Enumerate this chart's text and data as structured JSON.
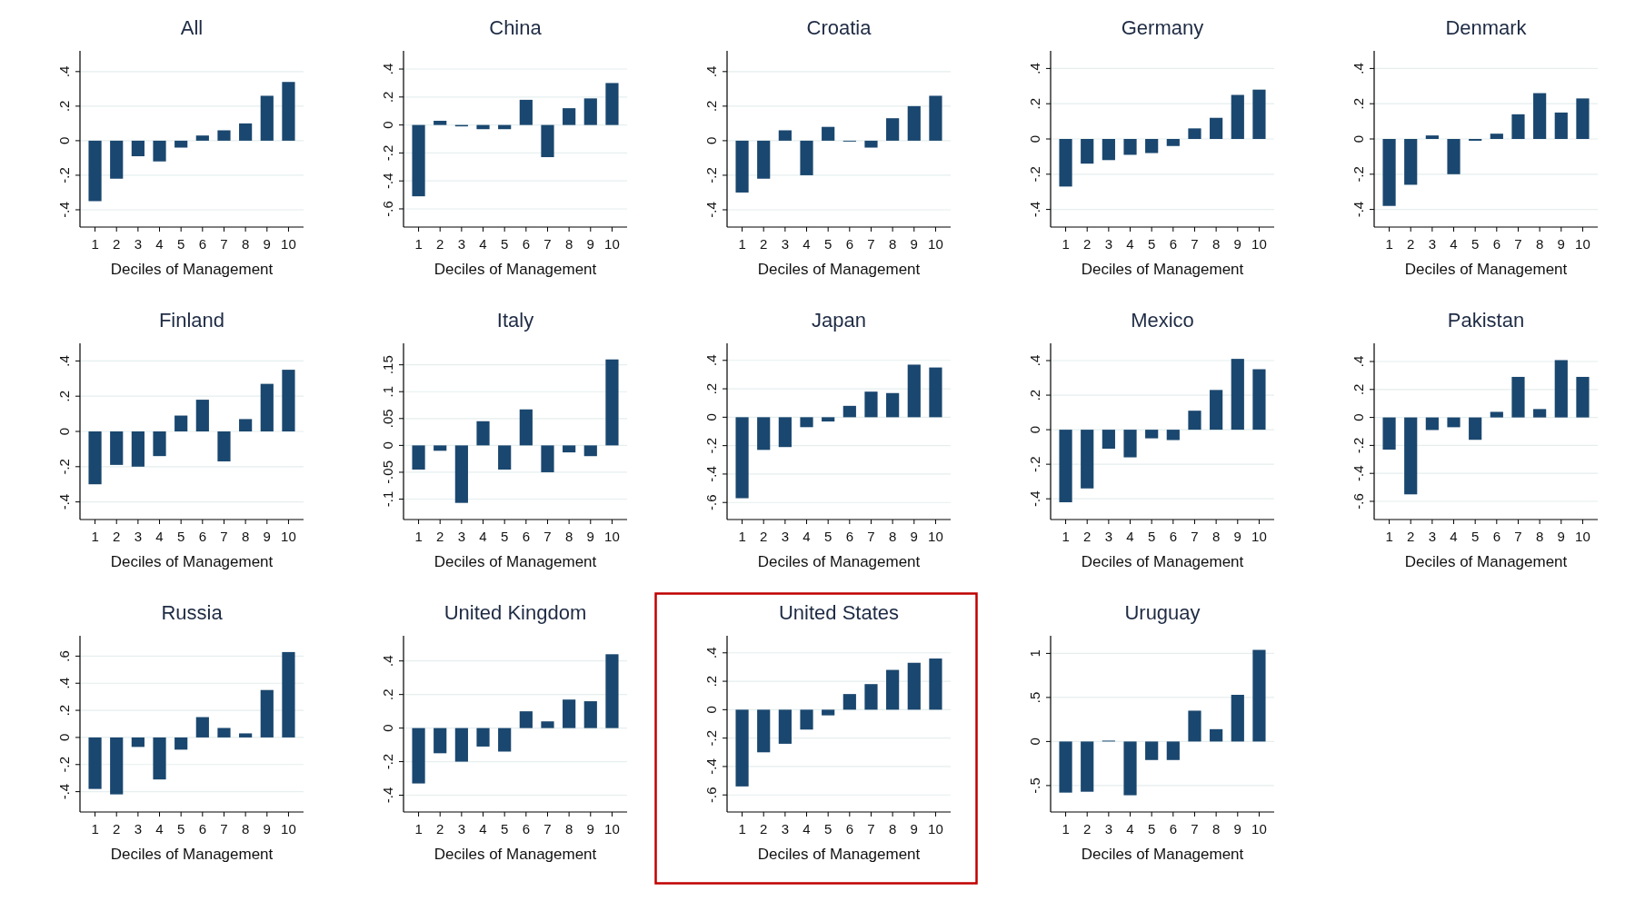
{
  "chart_data": [
    {
      "type": "bar",
      "title": "All",
      "xlabel": "Deciles of Management",
      "categories": [
        "1",
        "2",
        "3",
        "4",
        "5",
        "6",
        "7",
        "8",
        "9",
        "10"
      ],
      "values": [
        -0.35,
        -0.22,
        -0.09,
        -0.12,
        -0.04,
        0.03,
        0.06,
        0.1,
        0.26,
        0.34
      ],
      "color": "#1a476f",
      "ylim": [
        -0.5,
        0.52
      ],
      "yticks": [
        {
          "value": -0.4,
          "label": "-.4"
        },
        {
          "value": -0.2,
          "label": "-.2"
        },
        {
          "value": 0,
          "label": "0"
        },
        {
          "value": 0.2,
          "label": ".2"
        },
        {
          "value": 0.4,
          "label": ".4"
        }
      ],
      "grid": "y"
    },
    {
      "type": "bar",
      "title": "China",
      "xlabel": "Deciles of Management",
      "categories": [
        "1",
        "2",
        "3",
        "4",
        "5",
        "6",
        "7",
        "8",
        "9",
        "10"
      ],
      "values": [
        -0.51,
        0.03,
        -0.01,
        -0.03,
        -0.03,
        0.18,
        -0.23,
        0.12,
        0.19,
        0.3
      ],
      "color": "#1a476f",
      "ylim": [
        -0.73,
        0.53
      ],
      "yticks": [
        {
          "value": -0.6,
          "label": "-.6"
        },
        {
          "value": -0.4,
          "label": "-.4"
        },
        {
          "value": -0.2,
          "label": "-.2"
        },
        {
          "value": 0,
          "label": "0"
        },
        {
          "value": 0.2,
          "label": ".2"
        },
        {
          "value": 0.4,
          "label": ".4"
        }
      ],
      "grid": "y"
    },
    {
      "type": "bar",
      "title": "Croatia",
      "xlabel": "Deciles of Management",
      "categories": [
        "1",
        "2",
        "3",
        "4",
        "5",
        "6",
        "7",
        "8",
        "9",
        "10"
      ],
      "values": [
        -0.3,
        -0.22,
        0.06,
        -0.2,
        0.08,
        -0.005,
        -0.04,
        0.13,
        0.2,
        0.26
      ],
      "color": "#1a476f",
      "ylim": [
        -0.5,
        0.52
      ],
      "yticks": [
        {
          "value": -0.4,
          "label": "-.4"
        },
        {
          "value": -0.2,
          "label": "-.2"
        },
        {
          "value": 0,
          "label": "0"
        },
        {
          "value": 0.2,
          "label": ".2"
        },
        {
          "value": 0.4,
          "label": ".4"
        }
      ],
      "grid": "y"
    },
    {
      "type": "bar",
      "title": "Germany",
      "xlabel": "Deciles of Management",
      "categories": [
        "1",
        "2",
        "3",
        "4",
        "5",
        "6",
        "7",
        "8",
        "9",
        "10"
      ],
      "values": [
        -0.27,
        -0.14,
        -0.12,
        -0.09,
        -0.08,
        -0.04,
        0.06,
        0.12,
        0.25,
        0.28
      ],
      "color": "#1a476f",
      "ylim": [
        -0.5,
        0.5
      ],
      "yticks": [
        {
          "value": -0.4,
          "label": "-.4"
        },
        {
          "value": -0.2,
          "label": "-.2"
        },
        {
          "value": 0,
          "label": "0"
        },
        {
          "value": 0.2,
          "label": ".2"
        },
        {
          "value": 0.4,
          "label": ".4"
        }
      ],
      "grid": "y"
    },
    {
      "type": "bar",
      "title": "Denmark",
      "xlabel": "Deciles of Management",
      "categories": [
        "1",
        "2",
        "3",
        "4",
        "5",
        "6",
        "7",
        "8",
        "9",
        "10"
      ],
      "values": [
        -0.38,
        -0.26,
        0.02,
        -0.2,
        -0.01,
        0.03,
        0.14,
        0.26,
        0.15,
        0.23
      ],
      "color": "#1a476f",
      "ylim": [
        -0.5,
        0.5
      ],
      "yticks": [
        {
          "value": -0.4,
          "label": "-.4"
        },
        {
          "value": -0.2,
          "label": "-.2"
        },
        {
          "value": 0,
          "label": "0"
        },
        {
          "value": 0.2,
          "label": ".2"
        },
        {
          "value": 0.4,
          "label": ".4"
        }
      ],
      "grid": "y"
    },
    {
      "type": "bar",
      "title": "Finland",
      "xlabel": "Deciles of Management",
      "categories": [
        "1",
        "2",
        "3",
        "4",
        "5",
        "6",
        "7",
        "8",
        "9",
        "10"
      ],
      "values": [
        -0.3,
        -0.19,
        -0.2,
        -0.14,
        0.09,
        0.18,
        -0.17,
        0.07,
        0.27,
        0.35
      ],
      "color": "#1a476f",
      "ylim": [
        -0.5,
        0.5
      ],
      "yticks": [
        {
          "value": -0.4,
          "label": "-.4"
        },
        {
          "value": -0.2,
          "label": "-.2"
        },
        {
          "value": 0,
          "label": "0"
        },
        {
          "value": 0.2,
          "label": ".2"
        },
        {
          "value": 0.4,
          "label": ".4"
        }
      ],
      "grid": "y"
    },
    {
      "type": "bar",
      "title": "Italy",
      "xlabel": "Deciles of Management",
      "categories": [
        "1",
        "2",
        "3",
        "4",
        "5",
        "6",
        "7",
        "8",
        "9",
        "10"
      ],
      "values": [
        -0.045,
        -0.01,
        -0.107,
        0.045,
        -0.045,
        0.067,
        -0.05,
        -0.013,
        -0.02,
        0.16
      ],
      "color": "#1a476f",
      "ylim": [
        -0.138,
        0.19
      ],
      "yticks": [
        {
          "value": -0.1,
          "label": "-.1"
        },
        {
          "value": -0.05,
          "label": "-.05"
        },
        {
          "value": 0,
          "label": "0"
        },
        {
          "value": 0.05,
          "label": ".05"
        },
        {
          "value": 0.1,
          "label": ".1"
        },
        {
          "value": 0.15,
          "label": ".15"
        }
      ],
      "grid": "y"
    },
    {
      "type": "bar",
      "title": "Japan",
      "xlabel": "Deciles of Management",
      "categories": [
        "1",
        "2",
        "3",
        "4",
        "5",
        "6",
        "7",
        "8",
        "9",
        "10"
      ],
      "values": [
        -0.57,
        -0.23,
        -0.21,
        -0.07,
        -0.03,
        0.08,
        0.18,
        0.17,
        0.37,
        0.35
      ],
      "color": "#1a476f",
      "ylim": [
        -0.72,
        0.52
      ],
      "yticks": [
        {
          "value": -0.6,
          "label": "-.6"
        },
        {
          "value": -0.4,
          "label": "-.4"
        },
        {
          "value": -0.2,
          "label": "-.2"
        },
        {
          "value": 0,
          "label": "0"
        },
        {
          "value": 0.2,
          "label": ".2"
        },
        {
          "value": 0.4,
          "label": ".4"
        }
      ],
      "grid": "y"
    },
    {
      "type": "bar",
      "title": "Mexico",
      "xlabel": "Deciles of Management",
      "categories": [
        "1",
        "2",
        "3",
        "4",
        "5",
        "6",
        "7",
        "8",
        "9",
        "10"
      ],
      "values": [
        -0.42,
        -0.34,
        -0.11,
        -0.16,
        -0.05,
        -0.06,
        0.11,
        0.23,
        0.41,
        0.35
      ],
      "color": "#1a476f",
      "ylim": [
        -0.52,
        0.5
      ],
      "yticks": [
        {
          "value": -0.4,
          "label": "-.4"
        },
        {
          "value": -0.2,
          "label": "-.2"
        },
        {
          "value": 0,
          "label": "0"
        },
        {
          "value": 0.2,
          "label": ".2"
        },
        {
          "value": 0.4,
          "label": ".4"
        }
      ],
      "grid": "y"
    },
    {
      "type": "bar",
      "title": "Pakistan",
      "xlabel": "Deciles of Management",
      "categories": [
        "1",
        "2",
        "3",
        "4",
        "5",
        "6",
        "7",
        "8",
        "9",
        "10"
      ],
      "values": [
        -0.23,
        -0.55,
        -0.09,
        -0.07,
        -0.16,
        0.04,
        0.29,
        0.06,
        0.41,
        0.29
      ],
      "color": "#1a476f",
      "ylim": [
        -0.73,
        0.53
      ],
      "yticks": [
        {
          "value": -0.6,
          "label": "-.6"
        },
        {
          "value": -0.4,
          "label": "-.4"
        },
        {
          "value": -0.2,
          "label": "-.2"
        },
        {
          "value": 0,
          "label": "0"
        },
        {
          "value": 0.2,
          "label": ".2"
        },
        {
          "value": 0.4,
          "label": ".4"
        }
      ],
      "grid": "y"
    },
    {
      "type": "bar",
      "title": "Russia",
      "xlabel": "Deciles of Management",
      "categories": [
        "1",
        "2",
        "3",
        "4",
        "5",
        "6",
        "7",
        "8",
        "9",
        "10"
      ],
      "values": [
        -0.38,
        -0.42,
        -0.07,
        -0.31,
        -0.09,
        0.15,
        0.07,
        0.03,
        0.35,
        0.63
      ],
      "color": "#1a476f",
      "ylim": [
        -0.55,
        0.75
      ],
      "yticks": [
        {
          "value": -0.4,
          "label": "-.4"
        },
        {
          "value": -0.2,
          "label": "-.2"
        },
        {
          "value": 0,
          "label": "0"
        },
        {
          "value": 0.2,
          "label": ".2"
        },
        {
          "value": 0.4,
          "label": ".4"
        },
        {
          "value": 0.6,
          "label": ".6"
        }
      ],
      "grid": "y"
    },
    {
      "type": "bar",
      "title": "United Kingdom",
      "xlabel": "Deciles of Management",
      "categories": [
        "1",
        "2",
        "3",
        "4",
        "5",
        "6",
        "7",
        "8",
        "9",
        "10"
      ],
      "values": [
        -0.33,
        -0.15,
        -0.2,
        -0.11,
        -0.14,
        0.1,
        0.04,
        0.17,
        0.16,
        0.44
      ],
      "color": "#1a476f",
      "ylim": [
        -0.5,
        0.55
      ],
      "yticks": [
        {
          "value": -0.4,
          "label": "-.4"
        },
        {
          "value": -0.2,
          "label": "-.2"
        },
        {
          "value": 0,
          "label": "0"
        },
        {
          "value": 0.2,
          "label": ".2"
        },
        {
          "value": 0.4,
          "label": ".4"
        }
      ],
      "grid": "y"
    },
    {
      "type": "bar",
      "title": "United States",
      "xlabel": "Deciles of Management",
      "categories": [
        "1",
        "2",
        "3",
        "4",
        "5",
        "6",
        "7",
        "8",
        "9",
        "10"
      ],
      "values": [
        -0.54,
        -0.3,
        -0.24,
        -0.14,
        -0.04,
        0.11,
        0.18,
        0.28,
        0.33,
        0.36
      ],
      "color": "#1a476f",
      "ylim": [
        -0.72,
        0.52
      ],
      "yticks": [
        {
          "value": -0.6,
          "label": "-.6"
        },
        {
          "value": -0.4,
          "label": "-.4"
        },
        {
          "value": -0.2,
          "label": "-.2"
        },
        {
          "value": 0,
          "label": "0"
        },
        {
          "value": 0.2,
          "label": ".2"
        },
        {
          "value": 0.4,
          "label": ".4"
        }
      ],
      "grid": "y"
    },
    {
      "type": "bar",
      "title": "Uruguay",
      "xlabel": "Deciles of Management",
      "categories": [
        "1",
        "2",
        "3",
        "4",
        "5",
        "6",
        "7",
        "8",
        "9",
        "10"
      ],
      "values": [
        -0.58,
        -0.57,
        0.01,
        -0.61,
        -0.21,
        -0.21,
        0.35,
        0.14,
        0.53,
        1.04
      ],
      "color": "#1a476f",
      "ylim": [
        -0.8,
        1.2
      ],
      "yticks": [
        {
          "value": -0.5,
          "label": "-.5"
        },
        {
          "value": 0,
          "label": "0"
        },
        {
          "value": 0.5,
          "label": ".5"
        },
        {
          "value": 1,
          "label": "1"
        }
      ],
      "grid": "y"
    }
  ]
}
